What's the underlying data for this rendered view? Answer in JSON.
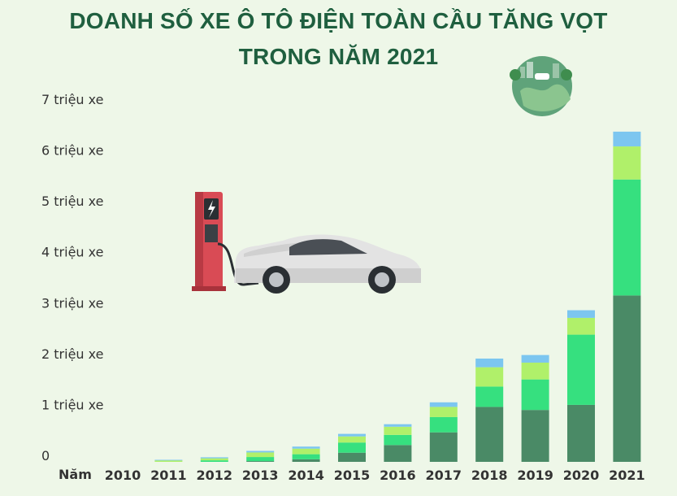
{
  "title_line1": "DOANH SỐ XE Ô TÔ ĐIỆN TOÀN CẦU TĂNG VỌT",
  "title_line2": "TRONG NĂM 2021",
  "colors": {
    "background": "#eef7e8",
    "title": "#1f5f3f",
    "series": [
      "#4a8a66",
      "#36e07f",
      "#b0f06a",
      "#7cc6f0"
    ]
  },
  "icons": [
    "ev-charging-station-icon",
    "electric-car-icon",
    "green-earth-icon"
  ],
  "chart_data": {
    "type": "bar",
    "stacked": true,
    "xlabel": "Năm",
    "categories": [
      "2010",
      "2011",
      "2012",
      "2013",
      "2014",
      "2015",
      "2016",
      "2017",
      "2018",
      "2019",
      "2020",
      "2021"
    ],
    "y_tick_labels": [
      "0",
      "1 triệu xe",
      "2 triệu xe",
      "3 triệu xe",
      "4 triệu xe",
      "5 triệu xe",
      "6 triệu xe",
      "7 triệu xe"
    ],
    "ylim": [
      0,
      7000000
    ],
    "grid": false,
    "series": [
      {
        "values": [
          0,
          0,
          0,
          15000,
          50000,
          180000,
          330000,
          580000,
          1080000,
          1020000,
          1120000,
          3270000
        ]
      },
      {
        "values": [
          0,
          0,
          30000,
          80000,
          100000,
          200000,
          200000,
          300000,
          400000,
          600000,
          1380000,
          2280000
        ]
      },
      {
        "values": [
          0,
          30000,
          40000,
          90000,
          110000,
          120000,
          160000,
          200000,
          380000,
          330000,
          330000,
          650000
        ]
      },
      {
        "values": [
          0,
          10000,
          20000,
          30000,
          40000,
          50000,
          50000,
          90000,
          170000,
          150000,
          150000,
          290000
        ]
      }
    ]
  }
}
